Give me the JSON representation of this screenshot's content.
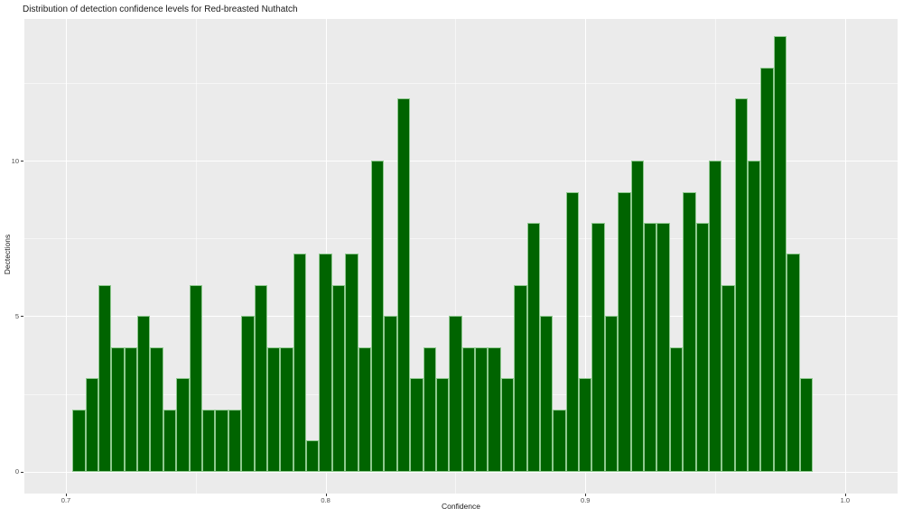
{
  "title": "Distribution of detection confidence levels for Red-breasted Nuthatch",
  "chart_data": {
    "type": "bar",
    "subtype": "histogram",
    "title": "Distribution of detection confidence levels for Red-breasted Nuthatch",
    "xlabel": "Confidence",
    "ylabel": "Dectections",
    "bin_start": 0.7025,
    "bin_width": 0.005,
    "values": [
      2,
      3,
      6,
      4,
      4,
      5,
      4,
      2,
      3,
      6,
      2,
      2,
      2,
      5,
      6,
      4,
      4,
      7,
      1,
      7,
      6,
      7,
      4,
      10,
      5,
      12,
      3,
      4,
      3,
      5,
      4,
      4,
      4,
      3,
      6,
      8,
      5,
      2,
      9,
      3,
      8,
      5,
      9,
      10,
      8,
      8,
      4,
      9,
      8,
      10,
      6,
      12,
      10,
      13,
      14,
      7,
      3
    ],
    "x_axis": {
      "ticks": [
        0.7,
        0.8,
        0.9,
        1.0
      ],
      "tick_labels": [
        "0.7",
        "0.8",
        "0.9",
        "1.0"
      ],
      "minor_ticks": [
        0.75,
        0.85,
        0.95
      ],
      "range": [
        0.684,
        1.0202
      ]
    },
    "y_axis": {
      "ticks": [
        0,
        5,
        10
      ],
      "tick_labels": [
        "0",
        "5",
        "10"
      ],
      "minor_ticks": [
        2.5,
        7.5,
        12.5
      ],
      "range": [
        -0.696,
        14.551
      ]
    },
    "grid": "major and minor white gridlines on gray panel",
    "legend": "none"
  },
  "colors": {
    "bar_fill": "#006400",
    "bar_border": "#8FC98F",
    "panel_bg": "#EBEBEB",
    "grid": "#FFFFFF",
    "tick_text": "#4D4D4D",
    "axis_text": "#1A1A1A",
    "tick_mark": "#333333",
    "background": "#FFFFFF"
  }
}
